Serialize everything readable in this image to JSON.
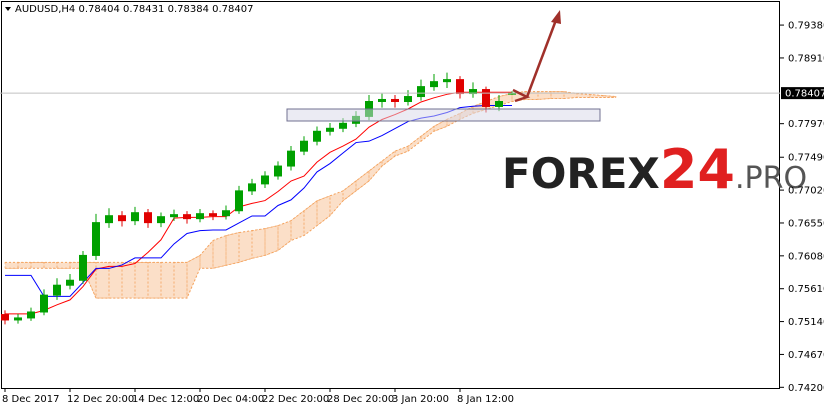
{
  "chart_data": {
    "type": "candlestick",
    "symbol": "AUDUSD,H4",
    "categories": [
      "8 Dec 2017",
      null,
      null,
      null,
      null,
      "12 Dec 20:00",
      null,
      null,
      null,
      null,
      "14 Dec 12:00",
      null,
      null,
      null,
      null,
      "20 Dec 04:00",
      null,
      null,
      null,
      null,
      "22 Dec 20:00",
      null,
      null,
      null,
      null,
      "28 Dec 20:00",
      null,
      null,
      null,
      null,
      "3 Jan 20:00",
      null,
      null,
      null,
      null,
      "8 Jan 12:00",
      null,
      null,
      null,
      null,
      null,
      null,
      null,
      null,
      null,
      null,
      null,
      null
    ],
    "open": [
      0.7524,
      0.75163,
      0.75192,
      0.75277,
      0.75518,
      0.7566,
      0.75731,
      0.76086,
      0.76555,
      0.76654,
      0.76583,
      0.76697,
      0.76555,
      0.7664,
      0.76669,
      0.76612,
      0.76683,
      0.76654,
      0.76725,
      0.77009,
      0.77109,
      0.77222,
      0.77364,
      0.77577,
      0.77719,
      0.77861,
      0.77904,
      0.77975,
      0.78074,
      0.78287,
      0.78316,
      0.78287,
      0.78358,
      0.785,
      0.78571,
      0.786,
      0.78401,
      0.78458,
      0.78216,
      0.78404,
      null,
      null,
      null,
      null,
      null,
      null,
      null,
      null
    ],
    "high": [
      0.753,
      0.7525,
      0.7534,
      0.756,
      0.7576,
      0.7582,
      0.7615,
      0.7668,
      0.7676,
      0.7672,
      0.7678,
      0.7675,
      0.767,
      0.7674,
      0.7672,
      0.7675,
      0.7673,
      0.768,
      0.7708,
      0.7718,
      0.7729,
      0.7743,
      0.7765,
      0.7779,
      0.7793,
      0.7798,
      0.7805,
      0.7815,
      0.7838,
      0.784,
      0.7838,
      0.7845,
      0.786,
      0.7868,
      0.787,
      0.7865,
      0.7856,
      0.785,
      0.7838,
      0.78431,
      null,
      null,
      null,
      null,
      null,
      null,
      null,
      null
    ],
    "low": [
      0.751,
      0.7511,
      0.7515,
      0.7523,
      0.7545,
      0.756,
      0.7568,
      0.7602,
      0.7648,
      0.765,
      0.7652,
      0.7648,
      0.7649,
      0.7658,
      0.7654,
      0.7656,
      0.7659,
      0.766,
      0.7668,
      0.7695,
      0.7705,
      0.7717,
      0.773,
      0.7752,
      0.7766,
      0.778,
      0.7785,
      0.7792,
      0.7802,
      0.782,
      0.782,
      0.7823,
      0.783,
      0.7844,
      0.7848,
      0.7833,
      0.7834,
      0.7813,
      0.7815,
      0.78384,
      null,
      null,
      null,
      null,
      null,
      null,
      null,
      null
    ],
    "close": [
      0.75163,
      0.75192,
      0.75277,
      0.75518,
      0.7566,
      0.75731,
      0.76086,
      0.76555,
      0.76654,
      0.76583,
      0.76697,
      0.76555,
      0.7664,
      0.76669,
      0.76612,
      0.76683,
      0.76654,
      0.76725,
      0.77009,
      0.77109,
      0.77222,
      0.77364,
      0.77577,
      0.77719,
      0.77861,
      0.77904,
      0.77975,
      0.78074,
      0.78287,
      0.78316,
      0.78287,
      0.78358,
      0.785,
      0.78571,
      0.786,
      0.78401,
      0.78458,
      0.78216,
      0.78287,
      0.78407,
      null,
      null,
      null,
      null,
      null,
      null,
      null,
      null
    ],
    "bull_color": "#00a000",
    "bear_color": "#e00000",
    "series": [
      {
        "color": "#ff0000",
        "values": [
          0.7525,
          0.7525,
          0.7525,
          0.753,
          0.7538,
          0.7545,
          0.7564,
          0.7589,
          0.7593,
          0.7593,
          0.7597,
          0.7613,
          0.7631,
          0.7662,
          0.7663,
          0.7663,
          0.7664,
          0.7664,
          0.7678,
          0.7683,
          0.7687,
          0.77,
          0.7715,
          0.7722,
          0.7742,
          0.7756,
          0.7765,
          0.7775,
          0.7792,
          0.7803,
          0.781,
          0.7818,
          0.7828,
          0.7834,
          0.7839,
          0.7842,
          0.7842,
          0.7842,
          0.7842,
          0.7842,
          null,
          null,
          null,
          null,
          null,
          null,
          null,
          null
        ]
      },
      {
        "color": "#0000ff",
        "values": [
          0.758,
          0.758,
          0.758,
          0.755,
          0.755,
          0.755,
          0.757,
          0.759,
          0.759,
          0.7595,
          0.7605,
          0.7605,
          0.7605,
          0.7625,
          0.764,
          0.7644,
          0.7645,
          0.7645,
          0.7655,
          0.7665,
          0.7665,
          0.768,
          0.7688,
          0.7705,
          0.7728,
          0.774,
          0.7755,
          0.777,
          0.7772,
          0.778,
          0.779,
          0.78,
          0.7805,
          0.7808,
          0.7813,
          0.782,
          0.7822,
          0.7823,
          0.7823,
          0.7823,
          null,
          null,
          null,
          null,
          null,
          null,
          null,
          null
        ]
      }
    ],
    "cloud": {
      "color": "#f4a460",
      "span_a": [
        0.75987,
        0.75987,
        0.75987,
        0.75987,
        0.75987,
        0.75987,
        0.75987,
        0.75987,
        0.75987,
        0.75987,
        0.75987,
        0.75987,
        0.75987,
        0.75987,
        0.75987,
        0.76086,
        0.76299,
        0.7637,
        0.76413,
        0.76441,
        0.7647,
        0.76512,
        0.76583,
        0.76725,
        0.76867,
        0.76938,
        0.77009,
        0.77151,
        0.77293,
        0.77435,
        0.77577,
        0.77648,
        0.7779,
        0.77932,
        0.78032,
        0.78117,
        0.78216,
        0.78287,
        0.78358,
        0.78401,
        0.78429,
        0.78429,
        0.78429,
        0.78429,
        0.78401,
        0.78387,
        0.78372,
        0.78358
      ],
      "span_b": [
        0.75902,
        0.75902,
        0.75902,
        0.75902,
        0.75902,
        0.75902,
        0.75902,
        0.75476,
        0.75476,
        0.75476,
        0.75476,
        0.75476,
        0.75476,
        0.75476,
        0.75476,
        0.75902,
        0.75902,
        0.75944,
        0.75987,
        0.76044,
        0.76086,
        0.76157,
        0.76299,
        0.7637,
        0.76512,
        0.76654,
        0.76867,
        0.77009,
        0.77151,
        0.77364,
        0.77506,
        0.77577,
        0.77719,
        0.77861,
        0.77932,
        0.78032,
        0.78117,
        0.78174,
        0.7823,
        0.78287,
        0.78316,
        0.78316,
        0.7833,
        0.7833,
        0.78344,
        0.78344,
        0.78344,
        0.78344
      ]
    },
    "ylim": [
      0.7419,
      0.7971
    ],
    "yticks": [
      {
        "value": 0.7938,
        "label": "0.79380"
      },
      {
        "value": 0.7891,
        "label": "0.78910"
      },
      {
        "value": 0.7797,
        "label": "0.77970"
      },
      {
        "value": 0.7749,
        "label": "0.77490"
      },
      {
        "value": 0.7702,
        "label": "0.77020"
      },
      {
        "value": 0.7655,
        "label": "0.76550"
      },
      {
        "value": 0.7608,
        "label": "0.76080"
      },
      {
        "value": 0.7561,
        "label": "0.75610"
      },
      {
        "value": 0.7514,
        "label": "0.75140"
      },
      {
        "value": 0.7467,
        "label": "0.74670"
      },
      {
        "value": 0.742,
        "label": "0.74200"
      }
    ],
    "current_price": 0.78407
  },
  "watermark": {
    "brand": "FOREX",
    "number": "24",
    "suffix": ".PRO"
  }
}
